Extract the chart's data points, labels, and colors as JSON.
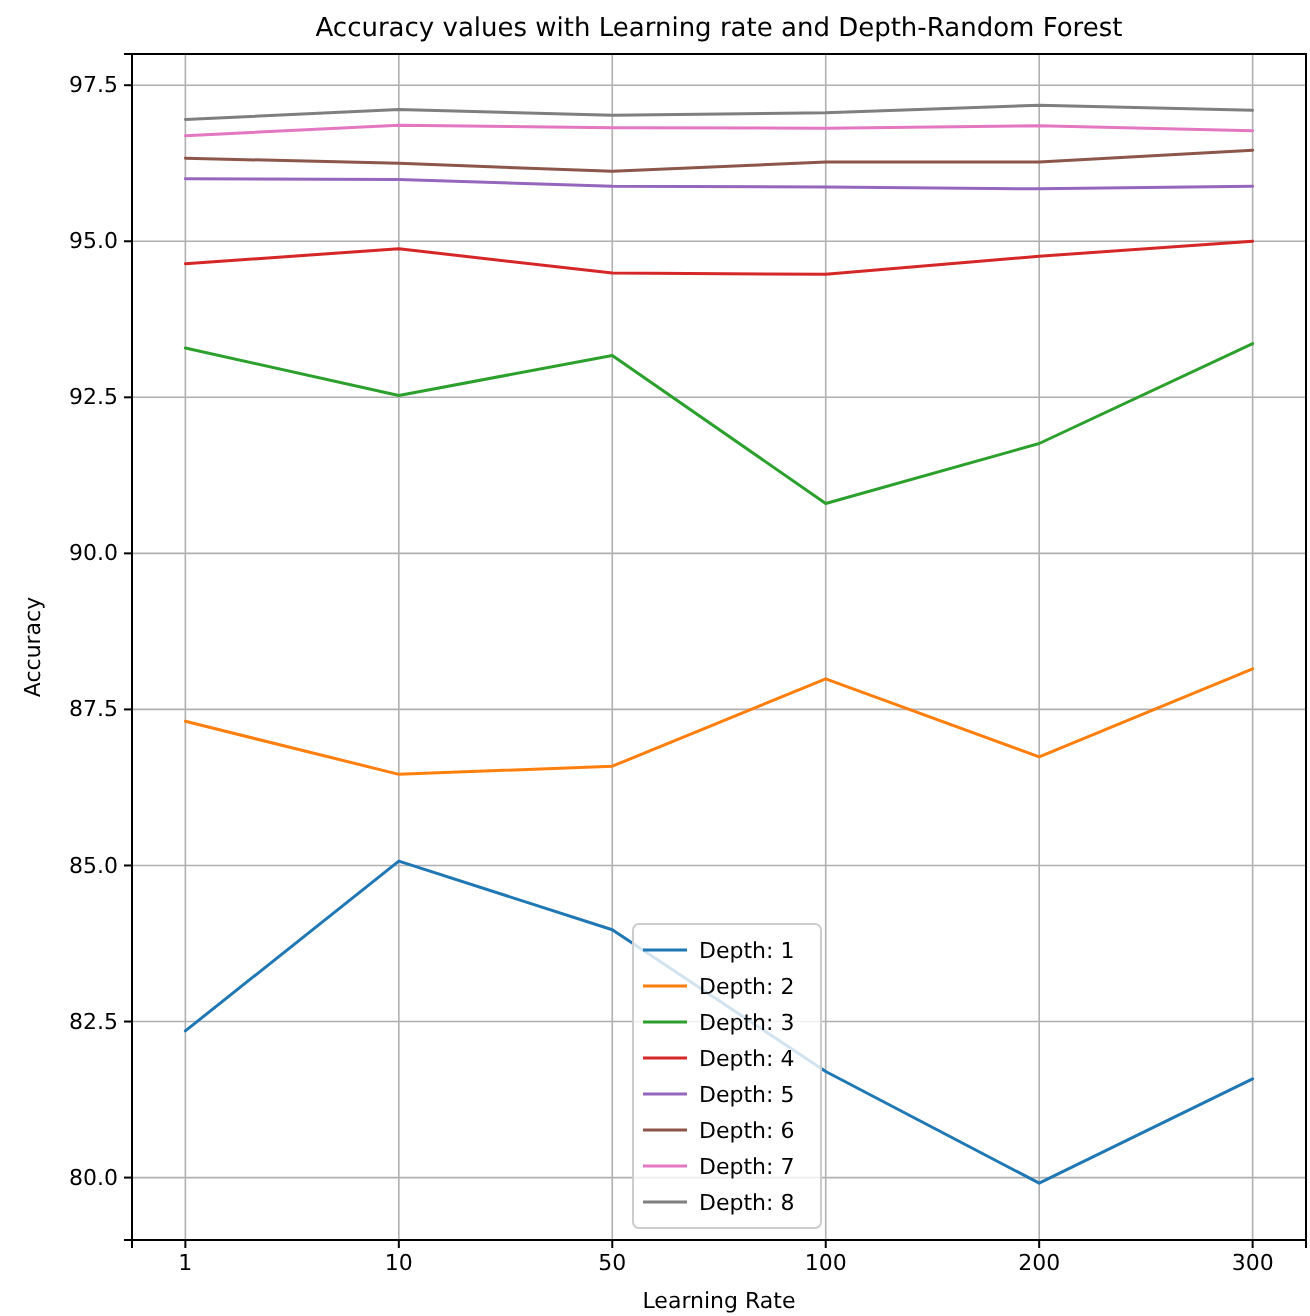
{
  "chart_data": {
    "type": "line",
    "title": "Accuracy values with Learning rate and Depth-Random Forest",
    "xlabel": "Learning Rate",
    "ylabel": "Accuracy",
    "categories": [
      "1",
      "10",
      "50",
      "100",
      "200",
      "300"
    ],
    "series": [
      {
        "name": "Depth: 1",
        "color": "#1f77b4",
        "values": [
          82.35,
          85.07,
          83.97,
          81.7,
          79.91,
          81.58
        ]
      },
      {
        "name": "Depth: 2",
        "color": "#ff7f0e",
        "values": [
          87.31,
          86.46,
          86.59,
          87.99,
          86.74,
          88.15
        ]
      },
      {
        "name": "Depth: 3",
        "color": "#2ca02c",
        "values": [
          93.29,
          92.53,
          93.17,
          90.8,
          91.76,
          93.36
        ]
      },
      {
        "name": "Depth: 4",
        "color": "#d62728",
        "values": [
          94.64,
          94.88,
          94.49,
          94.47,
          94.76,
          95.0
        ]
      },
      {
        "name": "Depth: 5",
        "color": "#9467bd",
        "values": [
          96.0,
          95.99,
          95.88,
          95.87,
          95.84,
          95.88
        ]
      },
      {
        "name": "Depth: 6",
        "color": "#8c564b",
        "values": [
          96.33,
          96.25,
          96.12,
          96.27,
          96.27,
          96.46
        ]
      },
      {
        "name": "Depth: 7",
        "color": "#e377c2",
        "values": [
          96.69,
          96.86,
          96.82,
          96.81,
          96.85,
          96.77
        ]
      },
      {
        "name": "Depth: 8",
        "color": "#7f7f7f",
        "values": [
          96.95,
          97.11,
          97.02,
          97.06,
          97.18,
          97.1
        ]
      }
    ],
    "ylim": [
      79.0,
      98.0
    ],
    "yticks": [
      {
        "value": 80,
        "label": "80.0"
      },
      {
        "value": 82.5,
        "label": "82.5"
      },
      {
        "value": 85,
        "label": "85.0"
      },
      {
        "value": 87.5,
        "label": "87.5"
      },
      {
        "value": 90,
        "label": "90.0"
      },
      {
        "value": 92.5,
        "label": "92.5"
      },
      {
        "value": 95,
        "label": "95.0"
      },
      {
        "value": 97.5,
        "label": "97.5"
      }
    ],
    "grid": true,
    "legend": "bottom",
    "marker": "none",
    "line_style": "solid"
  }
}
